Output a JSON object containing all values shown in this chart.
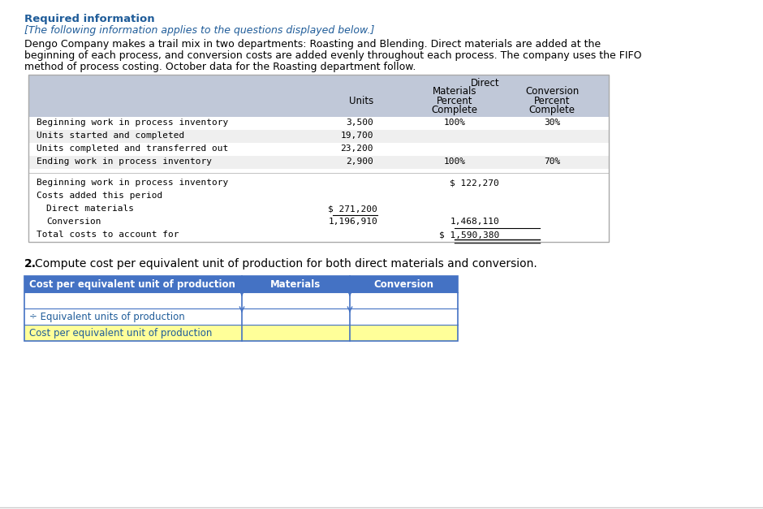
{
  "title_required": "Required information",
  "subtitle": "[The following information applies to the questions displayed below.]",
  "body_text": "Dengo Company makes a trail mix in two departments: Roasting and Blending. Direct materials are added at the\nbeginning of each process, and conversion costs are added evenly throughout each process. The company uses the FIFO\nmethod of process costing. October data for the Roasting department follow.",
  "table1_rows": [
    [
      "Beginning work in process inventory",
      "3,500",
      "100%",
      "30%"
    ],
    [
      "Units started and completed",
      "19,700",
      "",
      ""
    ],
    [
      "Units completed and transferred out",
      "23,200",
      "",
      ""
    ],
    [
      "Ending work in process inventory",
      "2,900",
      "100%",
      "70%"
    ]
  ],
  "table1_cost_rows": [
    [
      "Beginning work in process inventory",
      "",
      "$ 122,270"
    ],
    [
      "Costs added this period",
      "",
      ""
    ],
    [
      "  Direct materials",
      "$ 271,200",
      ""
    ],
    [
      "  Conversion",
      "1,196,910",
      "1,468,110"
    ],
    [
      "Total costs to account for",
      "",
      "$ 1,590,380"
    ]
  ],
  "question2_text": "Compute cost per equivalent unit of production for both direct materials and conversion.",
  "table2_row_labels": [
    "",
    "÷ Equivalent units of production",
    "Cost per equivalent unit of production"
  ],
  "title_blue": "#1F5C99",
  "body_black": "#000000",
  "table_header_bg": "#C0C8D8",
  "table2_header_bg": "#4472C4",
  "table2_header_text": "#FFFFFF",
  "table2_yellow": "#FFFF99",
  "border_blue": "#4472C4",
  "bg_color": "#FFFFFF"
}
